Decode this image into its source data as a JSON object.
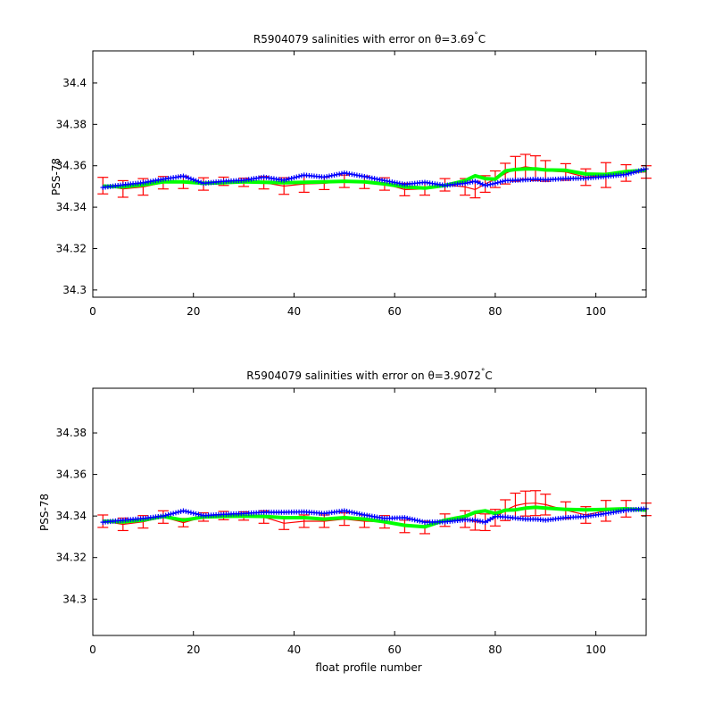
{
  "colors": {
    "error_bars": "#ff0000",
    "mapped_salinity": "#00ff00",
    "float_salinity": "#0000ff",
    "axes": "#000000",
    "background": "#ffffff"
  },
  "chart_data": [
    {
      "type": "line",
      "title": "R5904079 salinities with error on θ=3.69",
      "title_suffix": "°C",
      "xlabel": "",
      "ylabel": "PSS-78",
      "xlim": [
        0,
        110
      ],
      "ylim": [
        34.2965,
        34.4155
      ],
      "xticks": [
        0,
        20,
        40,
        60,
        80,
        100
      ],
      "yticks": [
        34.3,
        34.32,
        34.34,
        34.36,
        34.38,
        34.4
      ],
      "ytick_labels": [
        "34.3",
        "34.32",
        "34.34",
        "34.36",
        "34.38",
        "34.4"
      ],
      "grid": false,
      "legend": "none",
      "x": [
        2,
        6,
        10,
        14,
        18,
        22,
        26,
        30,
        34,
        38,
        42,
        46,
        50,
        54,
        58,
        62,
        66,
        70,
        74,
        76,
        78,
        80,
        82,
        84,
        86,
        88,
        90,
        94,
        98,
        102,
        106,
        110
      ],
      "series": [
        {
          "role": "mapped_salinity_error",
          "values": [
            34.3504,
            34.3488,
            34.3498,
            34.3518,
            34.352,
            34.3512,
            34.3525,
            34.352,
            34.3518,
            34.3502,
            34.3512,
            34.3515,
            34.3525,
            34.352,
            34.3512,
            34.3485,
            34.3488,
            34.3508,
            34.3498,
            34.3485,
            34.3512,
            34.3535,
            34.3562,
            34.3585,
            34.3595,
            34.3588,
            34.3575,
            34.357,
            34.3545,
            34.3555,
            34.3565,
            34.357
          ],
          "errors": [
            0.004,
            0.004,
            0.004,
            0.003,
            0.003,
            0.003,
            0.002,
            0.002,
            0.003,
            0.004,
            0.004,
            0.003,
            0.003,
            0.003,
            0.003,
            0.003,
            0.003,
            0.003,
            0.004,
            0.004,
            0.004,
            0.004,
            0.005,
            0.006,
            0.006,
            0.006,
            0.005,
            0.004,
            0.004,
            0.006,
            0.004,
            0.003
          ]
        },
        {
          "role": "mapped_salinity",
          "values": [
            34.3502,
            34.3498,
            34.3508,
            34.3522,
            34.3522,
            34.3515,
            34.3518,
            34.3522,
            34.352,
            34.3518,
            34.352,
            34.3522,
            34.3525,
            34.3522,
            34.3512,
            34.3498,
            34.3492,
            34.3505,
            34.3528,
            34.3552,
            34.3538,
            34.3535,
            34.3575,
            34.3582,
            34.3585,
            34.3585,
            34.358,
            34.3578,
            34.356,
            34.3558,
            34.3572,
            34.3578
          ]
        },
        {
          "role": "float_salinity",
          "values": [
            34.3495,
            34.3508,
            34.3518,
            34.3535,
            34.355,
            34.3515,
            34.3525,
            34.353,
            34.3545,
            34.353,
            34.3555,
            34.3545,
            34.3565,
            34.3548,
            34.3528,
            34.351,
            34.352,
            34.3505,
            34.3515,
            34.3525,
            34.3505,
            34.3515,
            34.3528,
            34.353,
            34.3532,
            34.3535,
            34.3532,
            34.3538,
            34.354,
            34.3548,
            34.3558,
            34.3585
          ]
        }
      ]
    },
    {
      "type": "line",
      "title": "R5904079 salinities with error on θ=3.9072",
      "title_suffix": "°C",
      "xlabel": "float profile number",
      "ylabel": "PSS-78",
      "xlim": [
        0,
        110
      ],
      "ylim": [
        34.2825,
        34.4015
      ],
      "xticks": [
        0,
        20,
        40,
        60,
        80,
        100
      ],
      "yticks": [
        34.3,
        34.32,
        34.34,
        34.36,
        34.38
      ],
      "ytick_labels": [
        "34.3",
        "34.32",
        "34.34",
        "34.36",
        "34.38"
      ],
      "grid": false,
      "legend": "none",
      "x": [
        2,
        6,
        10,
        14,
        18,
        22,
        26,
        30,
        34,
        38,
        42,
        46,
        50,
        54,
        58,
        62,
        66,
        70,
        74,
        76,
        78,
        80,
        82,
        84,
        86,
        88,
        90,
        94,
        98,
        102,
        106,
        110
      ],
      "series": [
        {
          "role": "mapped_salinity_error",
          "values": [
            34.3375,
            34.336,
            34.3372,
            34.3395,
            34.3368,
            34.3395,
            34.3402,
            34.34,
            34.3395,
            34.3365,
            34.3375,
            34.3375,
            34.3385,
            34.3375,
            34.3372,
            34.335,
            34.3345,
            34.338,
            34.3385,
            34.3372,
            34.337,
            34.3392,
            34.3428,
            34.345,
            34.346,
            34.3462,
            34.3455,
            34.3428,
            34.3405,
            34.3425,
            34.3435,
            34.3432
          ],
          "errors": [
            0.003,
            0.003,
            0.003,
            0.003,
            0.002,
            0.002,
            0.002,
            0.002,
            0.003,
            0.003,
            0.003,
            0.003,
            0.003,
            0.003,
            0.003,
            0.003,
            0.003,
            0.003,
            0.004,
            0.004,
            0.004,
            0.004,
            0.005,
            0.006,
            0.006,
            0.006,
            0.005,
            0.004,
            0.004,
            0.005,
            0.004,
            0.003
          ]
        },
        {
          "role": "mapped_salinity",
          "values": [
            34.3375,
            34.3372,
            34.338,
            34.3398,
            34.338,
            34.3395,
            34.3398,
            34.34,
            34.3398,
            34.3392,
            34.3392,
            34.3385,
            34.3392,
            34.3385,
            34.3372,
            34.3355,
            34.3348,
            34.338,
            34.3398,
            34.3418,
            34.3425,
            34.3412,
            34.3428,
            34.343,
            34.3438,
            34.3442,
            34.3438,
            34.3432,
            34.343,
            34.3432,
            34.3435,
            34.3428
          ]
        },
        {
          "role": "float_salinity",
          "values": [
            34.337,
            34.338,
            34.3388,
            34.34,
            34.3425,
            34.3402,
            34.3408,
            34.3412,
            34.3418,
            34.3418,
            34.342,
            34.3412,
            34.3425,
            34.3405,
            34.3388,
            34.3392,
            34.337,
            34.3372,
            34.3382,
            34.338,
            34.337,
            34.3398,
            34.3395,
            34.339,
            34.3385,
            34.3385,
            34.338,
            34.3392,
            34.3398,
            34.3412,
            34.3428,
            34.3435
          ]
        }
      ]
    }
  ]
}
